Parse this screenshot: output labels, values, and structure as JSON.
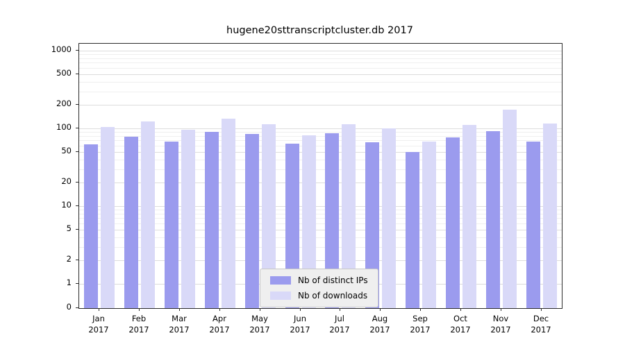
{
  "title": "hugene20sttranscriptcluster.db 2017",
  "y_axis": {
    "ticks": [
      1000,
      500,
      200,
      100,
      50,
      20,
      10,
      5,
      2,
      1,
      0
    ]
  },
  "grid": {
    "major": [
      1,
      2,
      5,
      10,
      20,
      50,
      100,
      200,
      500,
      1000
    ],
    "minor": [
      3,
      4,
      6,
      7,
      8,
      9,
      30,
      40,
      60,
      70,
      80,
      90,
      300,
      400,
      600,
      700,
      800,
      900
    ]
  },
  "chart_data": {
    "type": "bar",
    "title": "hugene20sttranscriptcluster.db 2017",
    "xlabel": "",
    "ylabel": "",
    "yscale": "log",
    "ylim": [
      0,
      1000
    ],
    "grid": true,
    "legend_position": "bottom-center-inside",
    "categories": [
      "Jan",
      "Feb",
      "Mar",
      "Apr",
      "May",
      "Jun",
      "Jul",
      "Aug",
      "Sep",
      "Oct",
      "Nov",
      "Dec"
    ],
    "year": "2017",
    "series": [
      {
        "name": "Nb of distinct IPs",
        "color": "#9b9bee",
        "values": [
          62,
          78,
          68,
          90,
          84,
          63,
          86,
          66,
          50,
          77,
          92,
          67
        ]
      },
      {
        "name": "Nb of downloads",
        "color": "#d9d9f8",
        "values": [
          105,
          122,
          95,
          132,
          113,
          81,
          113,
          100,
          67,
          110,
          175,
          115
        ]
      }
    ]
  }
}
